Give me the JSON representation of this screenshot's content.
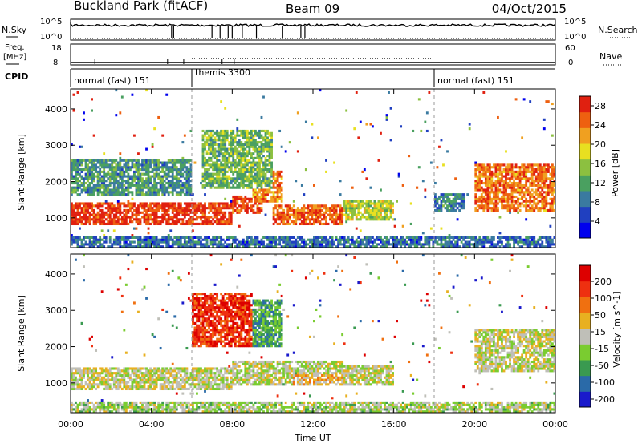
{
  "header": {
    "title": "Buckland Park (fitACF)",
    "beam": "Beam 09",
    "date": "04/Oct/2015"
  },
  "strips": {
    "sky": {
      "left_label": "N.Sky",
      "left_ticks": [
        "10^5",
        "10^0"
      ],
      "right_label": "N.Search",
      "right_ticks": [
        "10^5",
        "10^0"
      ]
    },
    "freq": {
      "left_label_1": "Freq.",
      "left_label_2": "[MHz]",
      "left_ticks": [
        "18",
        "8"
      ],
      "right_label": "Nave",
      "right_ticks": [
        "60",
        "0"
      ]
    },
    "cpid": {
      "label": "CPID",
      "segments": [
        {
          "name": "normal (fast) 151",
          "start_h": 0,
          "end_h": 6
        },
        {
          "name": "themis 3300",
          "start_h": 6,
          "end_h": 18
        },
        {
          "name": "normal (fast) 151",
          "start_h": 18,
          "end_h": 24
        }
      ]
    }
  },
  "chart_data": [
    {
      "type": "heatmap",
      "name": "Power",
      "ylabel": "Slant Range [km]",
      "xlabel": "Time UT",
      "xlim_hours": [
        0,
        24
      ],
      "ylim_km": [
        180,
        4550
      ],
      "y_ticks": [
        1000,
        2000,
        3000,
        4000
      ],
      "x_tick_labels": [
        "00:00",
        "04:00",
        "08:00",
        "12:00",
        "16:00",
        "20:00",
        "00:00"
      ],
      "colorbar": {
        "label": "Power [dB]",
        "ticks": [
          "4",
          "8",
          "12",
          "16",
          "20",
          "24",
          "28"
        ],
        "colors": [
          "#0000ee",
          "#2040c0",
          "#3a7aa0",
          "#4aa060",
          "#8cc040",
          "#e8e020",
          "#f0a020",
          "#ee6010",
          "#e02010"
        ]
      },
      "regions": [
        {
          "t0": 0.0,
          "t1": 8.0,
          "r0": 800,
          "r1": 1450,
          "level": 0.92
        },
        {
          "t0": 8.0,
          "t1": 9.5,
          "r0": 1100,
          "r1": 1600,
          "level": 0.9
        },
        {
          "t0": 9.0,
          "t1": 10.5,
          "r0": 1400,
          "r1": 2300,
          "level": 0.78
        },
        {
          "t0": 10.0,
          "t1": 13.5,
          "r0": 800,
          "r1": 1350,
          "level": 0.85
        },
        {
          "t0": 13.5,
          "t1": 16.0,
          "r0": 900,
          "r1": 1500,
          "level": 0.55
        },
        {
          "t0": 0.0,
          "t1": 6.0,
          "r0": 1600,
          "r1": 2600,
          "level": 0.35
        },
        {
          "t0": 6.5,
          "t1": 10.0,
          "r0": 1800,
          "r1": 3400,
          "level": 0.45
        },
        {
          "t0": 18.0,
          "t1": 19.5,
          "r0": 1200,
          "r1": 1700,
          "level": 0.3
        },
        {
          "t0": 20.0,
          "t1": 24.0,
          "r0": 1200,
          "r1": 2500,
          "level": 0.8
        },
        {
          "t0": 0.0,
          "t1": 24.0,
          "r0": 180,
          "r1": 520,
          "level": 0.25
        }
      ]
    },
    {
      "type": "heatmap",
      "name": "Velocity",
      "ylabel": "Slant Range [km]",
      "xlabel": "Time UT",
      "xlim_hours": [
        0,
        24
      ],
      "ylim_km": [
        180,
        4550
      ],
      "y_ticks": [
        1000,
        2000,
        3000,
        4000
      ],
      "x_tick_labels": [
        "00:00",
        "04:00",
        "08:00",
        "12:00",
        "16:00",
        "20:00",
        "00:00"
      ],
      "colorbar": {
        "label": "Velocity [m s^-1]",
        "ticks": [
          "200",
          "100",
          "50",
          "15",
          "-15",
          "-50",
          "-100",
          "-200"
        ],
        "colors": [
          "#1a1acc",
          "#2a6aa8",
          "#3a9a50",
          "#7acc30",
          "#bfbfb8",
          "#e8b020",
          "#f07010",
          "#ee3010",
          "#dd0000"
        ]
      },
      "regions": [
        {
          "t0": 0.0,
          "t1": 8.0,
          "r0": 800,
          "r1": 1450,
          "level": 0.5
        },
        {
          "t0": 8.0,
          "t1": 13.5,
          "r0": 900,
          "r1": 1600,
          "level": 0.48
        },
        {
          "t0": 11.0,
          "t1": 13.5,
          "r0": 900,
          "r1": 1250,
          "level": 0.62
        },
        {
          "t0": 13.5,
          "t1": 16.0,
          "r0": 900,
          "r1": 1500,
          "level": 0.5
        },
        {
          "t0": 6.0,
          "t1": 9.0,
          "r0": 2000,
          "r1": 3500,
          "level": 0.85
        },
        {
          "t0": 9.0,
          "t1": 10.5,
          "r0": 2000,
          "r1": 3300,
          "level": 0.3
        },
        {
          "t0": 20.0,
          "t1": 24.0,
          "r0": 1300,
          "r1": 2500,
          "level": 0.5
        },
        {
          "t0": 0.0,
          "t1": 24.0,
          "r0": 180,
          "r1": 500,
          "level": 0.45
        }
      ]
    }
  ]
}
